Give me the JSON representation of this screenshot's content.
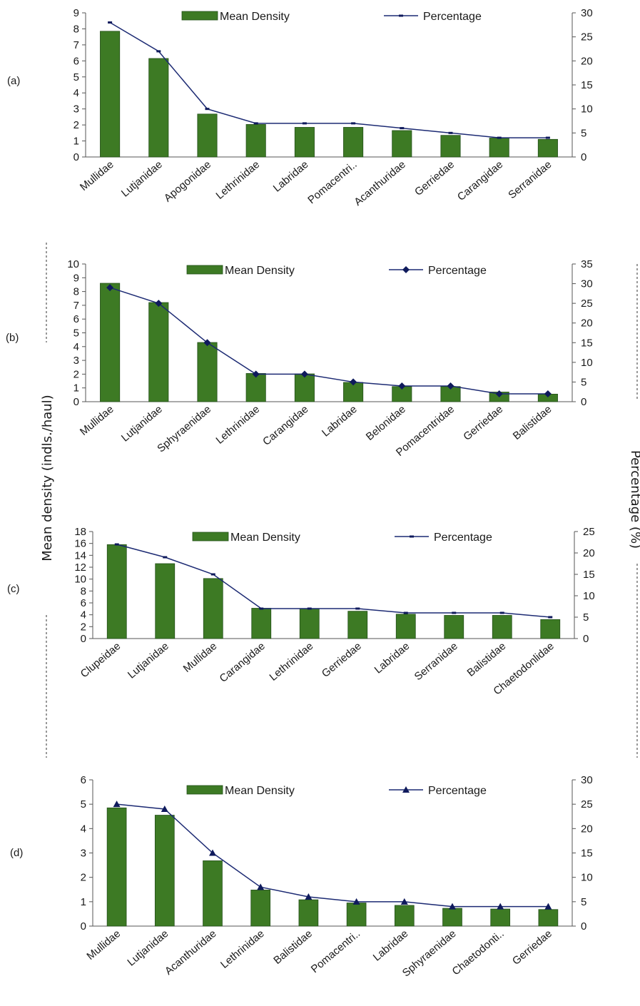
{
  "y_axis_left_label": "Mean density (indls./haul)",
  "y_axis_right_label": "Percentage (%)",
  "chart_data": [
    {
      "panel_label": "(a)",
      "type": "bar",
      "categories": [
        "Mullidae",
        "Lutjanidae",
        "Apogonidae",
        "Lethrinidae",
        "Labridae",
        "Pomacentri..",
        "Acanthuridae",
        "Gerriedae",
        "Carangidae",
        "Serranidae"
      ],
      "series": [
        {
          "name": "Mean Density",
          "type": "bar",
          "axis": "left",
          "values": [
            7.85,
            6.15,
            2.68,
            2.03,
            1.85,
            1.85,
            1.65,
            1.35,
            1.18,
            1.1
          ]
        },
        {
          "name": "Percentage",
          "type": "line",
          "axis": "right",
          "marker": "dash",
          "values": [
            28,
            22,
            10,
            7,
            7,
            7,
            6,
            5,
            4,
            4
          ]
        }
      ],
      "ylim_left": [
        0,
        9
      ],
      "yticks_left": [
        0,
        1,
        2,
        3,
        4,
        5,
        6,
        7,
        8,
        9
      ],
      "ylim_right": [
        0,
        30
      ],
      "yticks_right": [
        0,
        5,
        10,
        15,
        20,
        25,
        30
      ]
    },
    {
      "panel_label": "(b)",
      "type": "bar",
      "categories": [
        "Mullidae",
        "Lutjanidae",
        "Sphyraenidae",
        "Lethrinidae",
        "Carangidae",
        "Labridae",
        "Belonidae",
        "Pomacentridae",
        "Gerriedae",
        "Balistidae"
      ],
      "series": [
        {
          "name": "Mean Density",
          "type": "bar",
          "axis": "left",
          "values": [
            8.6,
            7.2,
            4.3,
            2.05,
            2.02,
            1.4,
            1.1,
            1.1,
            0.7,
            0.55
          ]
        },
        {
          "name": "Percentage",
          "type": "line",
          "axis": "right",
          "marker": "diamond",
          "values": [
            29,
            25,
            15,
            7,
            7,
            5,
            4,
            4,
            2,
            2
          ]
        }
      ],
      "ylim_left": [
        0,
        10
      ],
      "yticks_left": [
        0,
        1,
        2,
        3,
        4,
        5,
        6,
        7,
        8,
        9,
        10
      ],
      "ylim_right": [
        0,
        35
      ],
      "yticks_right": [
        0,
        5,
        10,
        15,
        20,
        25,
        30,
        35
      ]
    },
    {
      "panel_label": "(c)",
      "type": "bar",
      "categories": [
        "Clupeidae",
        "Lutjanidae",
        "Mullidae",
        "Carangidae",
        "Lethrinidae",
        "Gerriedae",
        "Labridae",
        "Serranidae",
        "Balistidae",
        "Chaetodonlidae"
      ],
      "series": [
        {
          "name": "Mean Density",
          "type": "bar",
          "axis": "left",
          "values": [
            15.8,
            12.6,
            10.1,
            5.1,
            5.0,
            4.6,
            4.1,
            3.9,
            3.9,
            3.2
          ]
        },
        {
          "name": "Percentage",
          "type": "line",
          "axis": "right",
          "marker": "dash",
          "values": [
            22,
            19,
            15,
            7,
            7,
            7,
            6,
            6,
            6,
            5
          ]
        }
      ],
      "ylim_left": [
        0,
        18
      ],
      "yticks_left": [
        0,
        2,
        4,
        6,
        8,
        10,
        12,
        14,
        16,
        18
      ],
      "ylim_right": [
        0,
        25
      ],
      "yticks_right": [
        0,
        5,
        10,
        15,
        20,
        25
      ]
    },
    {
      "panel_label": "(d)",
      "type": "bar",
      "categories": [
        "Mullidae",
        "Lutjanidae",
        "Acanthuridae",
        "Lethrinidae",
        "Balistidae",
        "Pomacentri..",
        "Labridae",
        "Sphyraenidae",
        "Chaetodonti..",
        "Gerriedae"
      ],
      "series": [
        {
          "name": "Mean Density",
          "type": "bar",
          "axis": "left",
          "values": [
            4.85,
            4.55,
            2.68,
            1.48,
            1.08,
            0.95,
            0.85,
            0.73,
            0.7,
            0.68
          ]
        },
        {
          "name": "Percentage",
          "type": "line",
          "axis": "right",
          "marker": "triangle",
          "values": [
            25,
            24,
            15,
            8,
            6,
            5,
            5,
            4,
            4,
            4
          ]
        }
      ],
      "ylim_left": [
        0,
        6
      ],
      "yticks_left": [
        0,
        1,
        2,
        3,
        4,
        5,
        6
      ],
      "ylim_right": [
        0,
        30
      ],
      "yticks_right": [
        0,
        5,
        10,
        15,
        20,
        25,
        30
      ]
    }
  ],
  "colors": {
    "bar_fill": "#3d7a24",
    "bar_stroke": "#24501a",
    "line": "#1c2a73",
    "marker": "#0f1a5c",
    "axis": "#555555",
    "dashed": "#333333"
  }
}
